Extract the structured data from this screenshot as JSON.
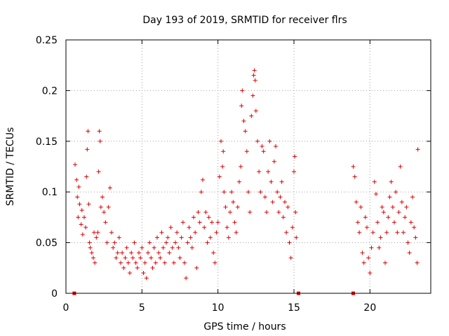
{
  "chart_data": {
    "type": "scatter",
    "title": "Day 193 of 2019, SRMTID for receiver flrs",
    "xlabel": "GPS time / hours",
    "ylabel": "SRMTID / TECUs",
    "xlim": [
      0,
      24
    ],
    "ylim": [
      0,
      0.25
    ],
    "xticks": [
      0,
      5,
      10,
      15,
      20
    ],
    "xtick_labels": [
      "0",
      "5",
      "10",
      "15",
      "20"
    ],
    "yticks": [
      0,
      0.05,
      0.1,
      0.15,
      0.2,
      0.25
    ],
    "ytick_labels": [
      "0",
      "0.05",
      "0.1",
      "0.15",
      "0.2",
      "0.25"
    ],
    "grid": true,
    "marker": "+",
    "series": [
      {
        "color": "#e00000",
        "points": [
          [
            0.6,
            0.127
          ],
          [
            0.7,
            0.112
          ],
          [
            0.75,
            0.095
          ],
          [
            0.8,
            0.075
          ],
          [
            0.85,
            0.105
          ],
          [
            0.9,
            0.088
          ],
          [
            1.0,
            0.068
          ],
          [
            1.05,
            0.082
          ],
          [
            1.1,
            0.058
          ],
          [
            1.2,
            0.075
          ],
          [
            1.3,
            0.065
          ],
          [
            1.35,
            0.115
          ],
          [
            1.4,
            0.142
          ],
          [
            1.45,
            0.16
          ],
          [
            1.5,
            0.088
          ],
          [
            1.55,
            0.05
          ],
          [
            1.6,
            0.045
          ],
          [
            1.7,
            0.04
          ],
          [
            1.8,
            0.035
          ],
          [
            1.85,
            0.06
          ],
          [
            1.9,
            0.03
          ],
          [
            2.0,
            0.055
          ],
          [
            2.1,
            0.06
          ],
          [
            2.15,
            0.12
          ],
          [
            2.2,
            0.16
          ],
          [
            2.25,
            0.15
          ],
          [
            2.3,
            0.085
          ],
          [
            2.4,
            0.095
          ],
          [
            2.5,
            0.08
          ],
          [
            2.6,
            0.07
          ],
          [
            2.7,
            0.05
          ],
          [
            2.8,
            0.085
          ],
          [
            2.9,
            0.104
          ],
          [
            3.0,
            0.06
          ],
          [
            3.1,
            0.045
          ],
          [
            3.2,
            0.05
          ],
          [
            3.3,
            0.035
          ],
          [
            3.4,
            0.04
          ],
          [
            3.5,
            0.055
          ],
          [
            3.6,
            0.03
          ],
          [
            3.7,
            0.04
          ],
          [
            3.8,
            0.025
          ],
          [
            3.9,
            0.035
          ],
          [
            4.0,
            0.045
          ],
          [
            4.1,
            0.03
          ],
          [
            4.2,
            0.02
          ],
          [
            4.3,
            0.04
          ],
          [
            4.4,
            0.035
          ],
          [
            4.5,
            0.05
          ],
          [
            4.6,
            0.03
          ],
          [
            4.7,
            0.025
          ],
          [
            4.8,
            0.04
          ],
          [
            4.9,
            0.035
          ],
          [
            5.0,
            0.045
          ],
          [
            5.1,
            0.02
          ],
          [
            5.2,
            0.03
          ],
          [
            5.3,
            0.015
          ],
          [
            5.4,
            0.04
          ],
          [
            5.5,
            0.05
          ],
          [
            5.6,
            0.035
          ],
          [
            5.7,
            0.025
          ],
          [
            5.8,
            0.045
          ],
          [
            5.9,
            0.03
          ],
          [
            6.0,
            0.055
          ],
          [
            6.1,
            0.04
          ],
          [
            6.2,
            0.035
          ],
          [
            6.3,
            0.06
          ],
          [
            6.4,
            0.045
          ],
          [
            6.5,
            0.03
          ],
          [
            6.6,
            0.05
          ],
          [
            6.7,
            0.055
          ],
          [
            6.8,
            0.04
          ],
          [
            6.9,
            0.065
          ],
          [
            7.0,
            0.045
          ],
          [
            7.1,
            0.03
          ],
          [
            7.2,
            0.05
          ],
          [
            7.3,
            0.06
          ],
          [
            7.4,
            0.045
          ],
          [
            7.5,
            0.035
          ],
          [
            7.6,
            0.055
          ],
          [
            7.7,
            0.07
          ],
          [
            7.8,
            0.03
          ],
          [
            7.9,
            0.015
          ],
          [
            8.0,
            0.05
          ],
          [
            8.1,
            0.065
          ],
          [
            8.2,
            0.055
          ],
          [
            8.3,
            0.045
          ],
          [
            8.4,
            0.075
          ],
          [
            8.5,
            0.06
          ],
          [
            8.6,
            0.025
          ],
          [
            8.7,
            0.08
          ],
          [
            8.8,
            0.07
          ],
          [
            8.9,
            0.1
          ],
          [
            9.0,
            0.112
          ],
          [
            9.1,
            0.065
          ],
          [
            9.2,
            0.08
          ],
          [
            9.3,
            0.05
          ],
          [
            9.4,
            0.075
          ],
          [
            9.5,
            0.055
          ],
          [
            9.6,
            0.07
          ],
          [
            9.7,
            0.04
          ],
          [
            9.8,
            0.03
          ],
          [
            9.9,
            0.06
          ],
          [
            10.0,
            0.07
          ],
          [
            10.1,
            0.115
          ],
          [
            10.2,
            0.15
          ],
          [
            10.3,
            0.125
          ],
          [
            10.35,
            0.14
          ],
          [
            10.4,
            0.1
          ],
          [
            10.5,
            0.085
          ],
          [
            10.6,
            0.065
          ],
          [
            10.7,
            0.055
          ],
          [
            10.8,
            0.08
          ],
          [
            10.9,
            0.1
          ],
          [
            11.0,
            0.09
          ],
          [
            11.1,
            0.07
          ],
          [
            11.2,
            0.06
          ],
          [
            11.3,
            0.085
          ],
          [
            11.4,
            0.11
          ],
          [
            11.5,
            0.125
          ],
          [
            11.55,
            0.185
          ],
          [
            11.6,
            0.2
          ],
          [
            11.7,
            0.17
          ],
          [
            11.8,
            0.16
          ],
          [
            11.9,
            0.14
          ],
          [
            12.0,
            0.1
          ],
          [
            12.1,
            0.08
          ],
          [
            12.2,
            0.175
          ],
          [
            12.3,
            0.195
          ],
          [
            12.35,
            0.215
          ],
          [
            12.4,
            0.22
          ],
          [
            12.45,
            0.21
          ],
          [
            12.5,
            0.18
          ],
          [
            12.6,
            0.15
          ],
          [
            12.7,
            0.12
          ],
          [
            12.8,
            0.1
          ],
          [
            12.9,
            0.145
          ],
          [
            13.0,
            0.14
          ],
          [
            13.1,
            0.095
          ],
          [
            13.2,
            0.08
          ],
          [
            13.3,
            0.12
          ],
          [
            13.4,
            0.15
          ],
          [
            13.5,
            0.11
          ],
          [
            13.6,
            0.09
          ],
          [
            13.7,
            0.13
          ],
          [
            13.8,
            0.145
          ],
          [
            13.9,
            0.1
          ],
          [
            14.0,
            0.08
          ],
          [
            14.1,
            0.095
          ],
          [
            14.2,
            0.11
          ],
          [
            14.3,
            0.075
          ],
          [
            14.4,
            0.09
          ],
          [
            14.5,
            0.06
          ],
          [
            14.6,
            0.085
          ],
          [
            14.7,
            0.05
          ],
          [
            14.8,
            0.035
          ],
          [
            14.9,
            0.065
          ],
          [
            15.0,
            0.12
          ],
          [
            15.05,
            0.135
          ],
          [
            15.1,
            0.08
          ],
          [
            15.15,
            0.055
          ],
          [
            18.9,
            0.125
          ],
          [
            19.0,
            0.115
          ],
          [
            19.1,
            0.09
          ],
          [
            19.2,
            0.07
          ],
          [
            19.3,
            0.06
          ],
          [
            19.4,
            0.085
          ],
          [
            19.5,
            0.04
          ],
          [
            19.6,
            0.03
          ],
          [
            19.7,
            0.075
          ],
          [
            19.8,
            0.065
          ],
          [
            19.9,
            0.035
          ],
          [
            20.0,
            0.02
          ],
          [
            20.1,
            0.045
          ],
          [
            20.2,
            0.06
          ],
          [
            20.3,
            0.11
          ],
          [
            20.4,
            0.098
          ],
          [
            20.5,
            0.07
          ],
          [
            20.6,
            0.045
          ],
          [
            20.7,
            0.055
          ],
          [
            20.8,
            0.085
          ],
          [
            20.9,
            0.08
          ],
          [
            21.0,
            0.03
          ],
          [
            21.1,
            0.06
          ],
          [
            21.2,
            0.075
          ],
          [
            21.3,
            0.095
          ],
          [
            21.4,
            0.11
          ],
          [
            21.5,
            0.085
          ],
          [
            21.6,
            0.07
          ],
          [
            21.7,
            0.1
          ],
          [
            21.8,
            0.06
          ],
          [
            21.9,
            0.08
          ],
          [
            22.0,
            0.125
          ],
          [
            22.1,
            0.09
          ],
          [
            22.2,
            0.06
          ],
          [
            22.3,
            0.075
          ],
          [
            22.4,
            0.085
          ],
          [
            22.5,
            0.05
          ],
          [
            22.6,
            0.04
          ],
          [
            22.7,
            0.07
          ],
          [
            22.8,
            0.095
          ],
          [
            22.9,
            0.065
          ],
          [
            23.0,
            0.055
          ],
          [
            23.1,
            0.03
          ],
          [
            23.15,
            0.142
          ]
        ]
      }
    ],
    "gap_markers_x": [
      0.55,
      15.3,
      18.9
    ]
  }
}
